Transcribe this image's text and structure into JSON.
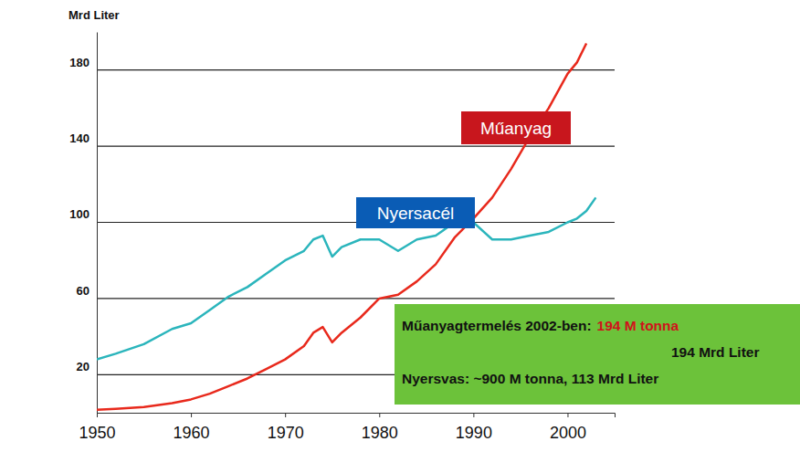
{
  "chart_data": {
    "type": "line",
    "y_label": "Mrd Liter",
    "x": [
      1950,
      1952,
      1955,
      1958,
      1960,
      1962,
      1964,
      1966,
      1968,
      1970,
      1972,
      1973,
      1974,
      1975,
      1976,
      1978,
      1980,
      1982,
      1984,
      1986,
      1988,
      1990,
      1992,
      1994,
      1996,
      1998,
      2000,
      2001,
      2002,
      2003
    ],
    "series": [
      {
        "name": "Műanyag",
        "color": "#e8291c",
        "values": [
          1.5,
          2,
          3,
          5,
          7,
          10,
          14,
          18,
          23,
          28,
          35,
          42,
          45,
          37,
          42,
          50,
          60,
          62,
          69,
          78,
          92,
          102,
          113,
          128,
          145,
          160,
          178,
          184,
          194,
          null
        ]
      },
      {
        "name": "Nyersacél",
        "color": "#2bb5bc",
        "values": [
          28,
          31,
          36,
          44,
          47,
          54,
          61,
          66,
          73,
          80,
          85,
          91,
          93,
          82,
          87,
          91,
          91,
          85,
          91,
          93,
          100,
          100,
          91,
          91,
          93,
          95,
          100,
          102,
          106,
          113
        ]
      }
    ],
    "xlim": [
      1950,
      2005
    ],
    "xticks": [
      1950,
      1960,
      1970,
      1980,
      1990,
      2000
    ],
    "ylim": [
      0,
      200
    ],
    "yticks": [
      20,
      60,
      100,
      140,
      180
    ],
    "grid": true,
    "annotation": {
      "lines": [
        [
          "Műanyagtermelés 2002-ben:",
          "194 M tonna"
        ],
        [
          "194 Mrd Liter"
        ],
        [
          "Nyersvas: ~900 M tonna, 113 Mrd Liter"
        ]
      ]
    }
  }
}
